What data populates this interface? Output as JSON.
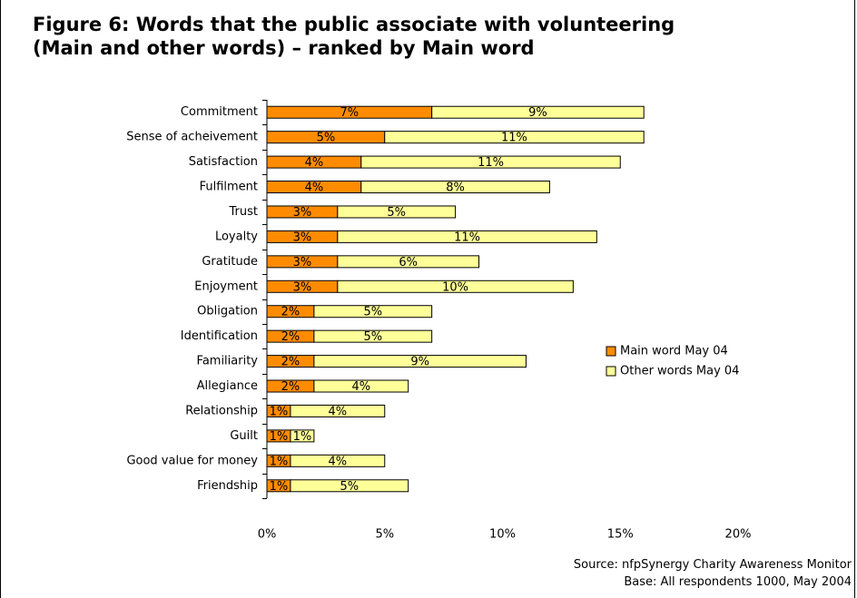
{
  "title_line1": "Figure 6: Words that the public associate with volunteering",
  "title_line2": "(Main and other words) – ranked by Main word",
  "source_line1": "Source: nfpSynergy Charity Awareness Monitor",
  "source_line2": "Base: All respondents 1000, May 2004",
  "colors": {
    "main": "#FF8C00",
    "other": "#FFFF99",
    "outline": "#000000"
  },
  "chart_data": {
    "type": "bar",
    "orientation": "horizontal",
    "stacked": true,
    "title": "",
    "xlabel": "",
    "ylabel": "",
    "xlim": [
      0,
      20
    ],
    "x_ticks": [
      "0%",
      "5%",
      "10%",
      "15%",
      "20%"
    ],
    "legend_position": "right",
    "grid": false,
    "categories": [
      "Commitment",
      "Sense of acheivement",
      "Satisfaction",
      "Fulfilment",
      "Trust",
      "Loyalty",
      "Gratitude",
      "Enjoyment",
      "Obligation",
      "Identification",
      "Familiarity",
      "Allegiance",
      "Relationship",
      "Guilt",
      "Good value for money",
      "Friendship"
    ],
    "series": [
      {
        "name": "Main word May 04",
        "values": [
          7,
          5,
          4,
          4,
          3,
          3,
          3,
          3,
          2,
          2,
          2,
          2,
          1,
          1,
          1,
          1
        ],
        "labels": [
          "7%",
          "5%",
          "4%",
          "4%",
          "3%",
          "3%",
          "3%",
          "3%",
          "2%",
          "2%",
          "2%",
          "2%",
          "1%",
          "1%",
          "1%",
          "1%"
        ]
      },
      {
        "name": "Other words May 04",
        "values": [
          9,
          11,
          11,
          8,
          5,
          11,
          6,
          10,
          5,
          5,
          9,
          4,
          4,
          1,
          4,
          5
        ],
        "labels": [
          "9%",
          "11%",
          "11%",
          "8%",
          "5%",
          "11%",
          "6%",
          "10%",
          "5%",
          "5%",
          "9%",
          "4%",
          "4%",
          "1%",
          "4%",
          "5%"
        ]
      }
    ]
  }
}
